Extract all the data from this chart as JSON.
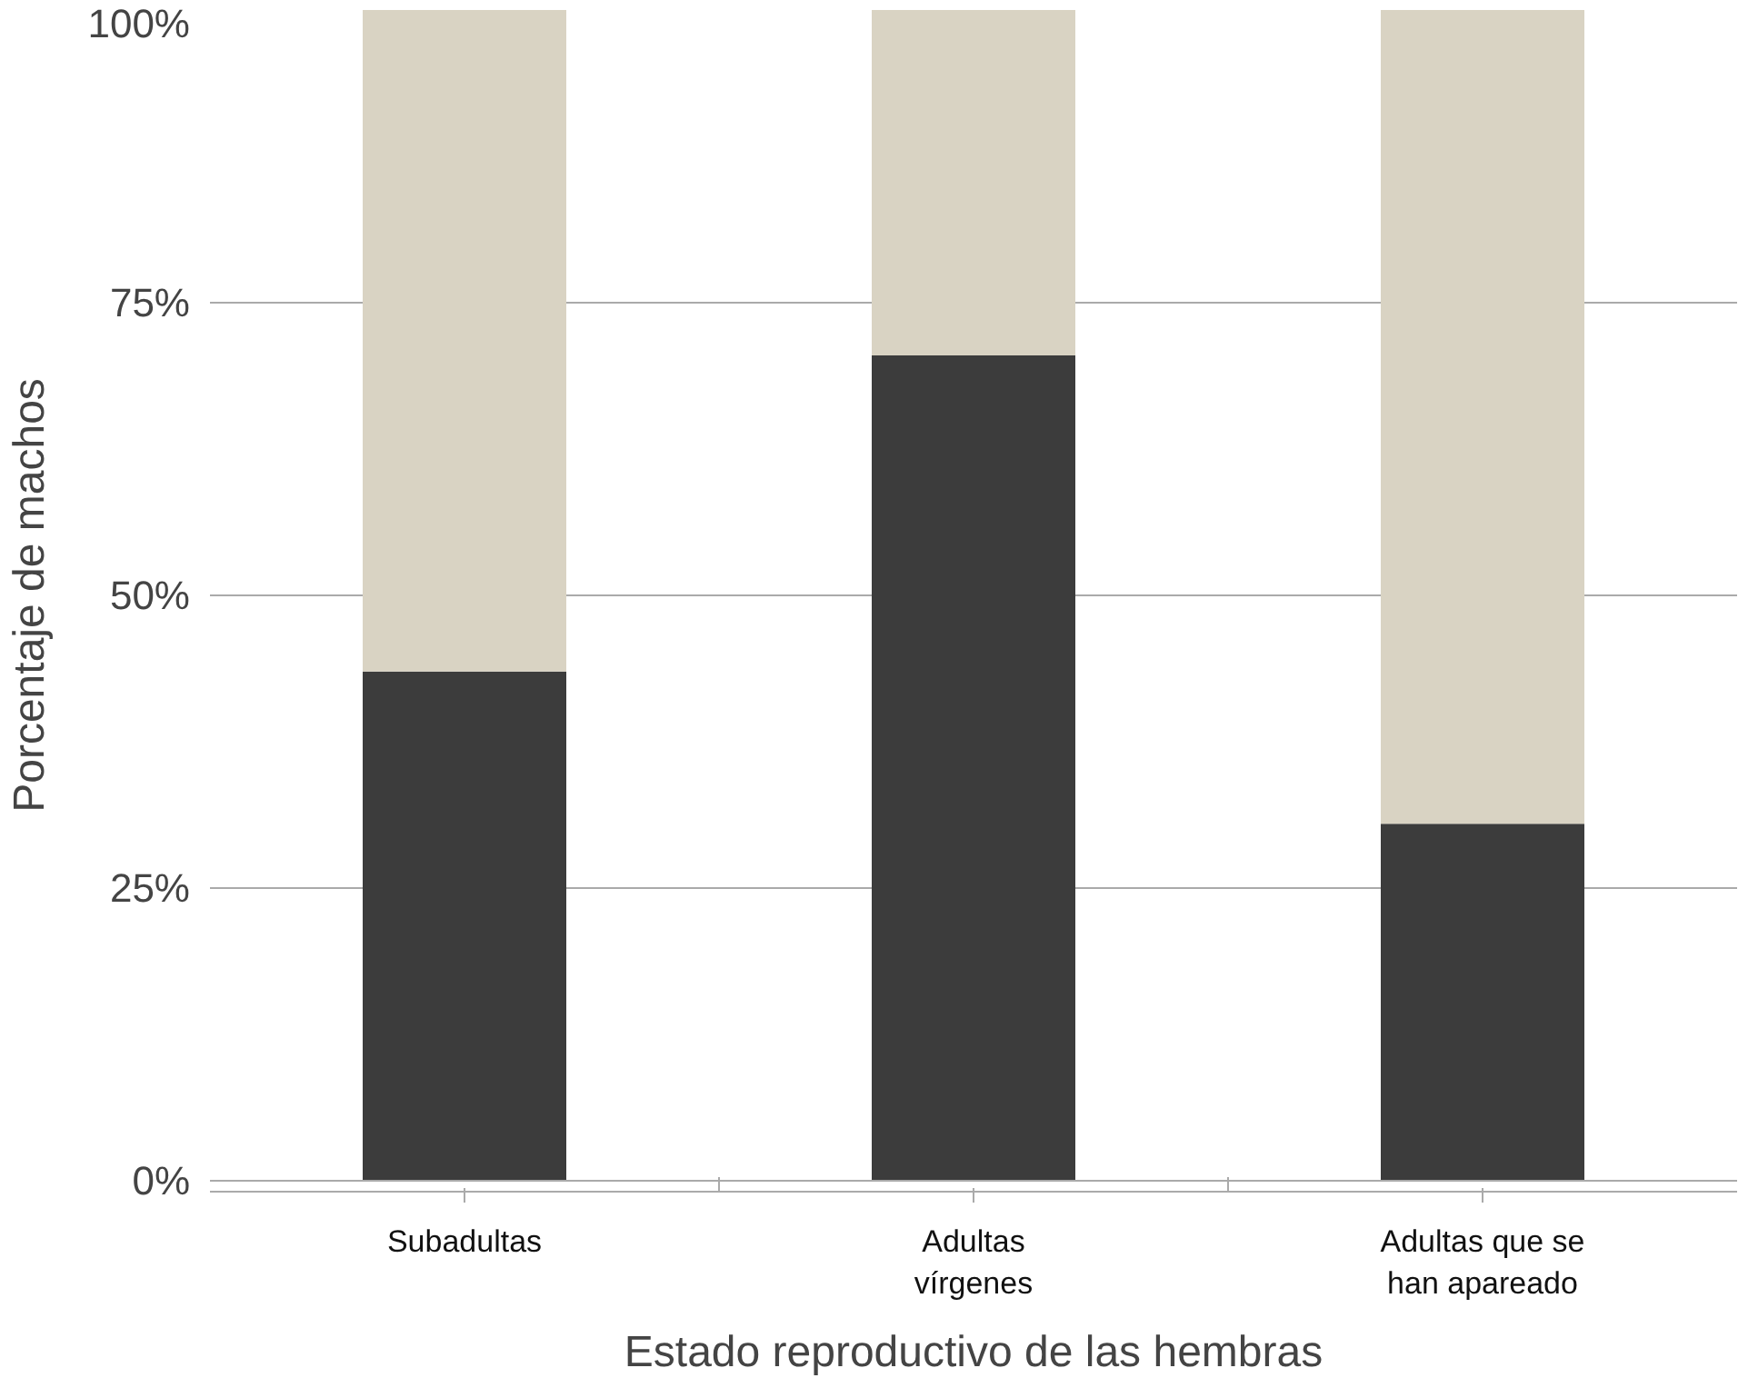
{
  "chart_data": {
    "type": "bar",
    "stacked": true,
    "xlabel": "Estado reproductivo de las hembras",
    "ylabel": "Porcentaje de machos",
    "categories": [
      "Subadultas",
      "Adultas vírgenes",
      "Adultas que se han apareado"
    ],
    "series": [
      {
        "color": "#3c3c3c",
        "values": [
          43.5,
          70.5,
          30.5
        ]
      },
      {
        "color": "#d9d3c3",
        "values": [
          56.5,
          29.5,
          69.5
        ]
      }
    ],
    "ylim": [
      0,
      100
    ],
    "yticks": [
      {
        "value": 0,
        "label": "0%"
      },
      {
        "value": 25,
        "label": "25%"
      },
      {
        "value": 50,
        "label": "50%"
      },
      {
        "value": 75,
        "label": "75%"
      },
      {
        "value": 100,
        "label": "100%"
      }
    ],
    "grid": "y"
  }
}
